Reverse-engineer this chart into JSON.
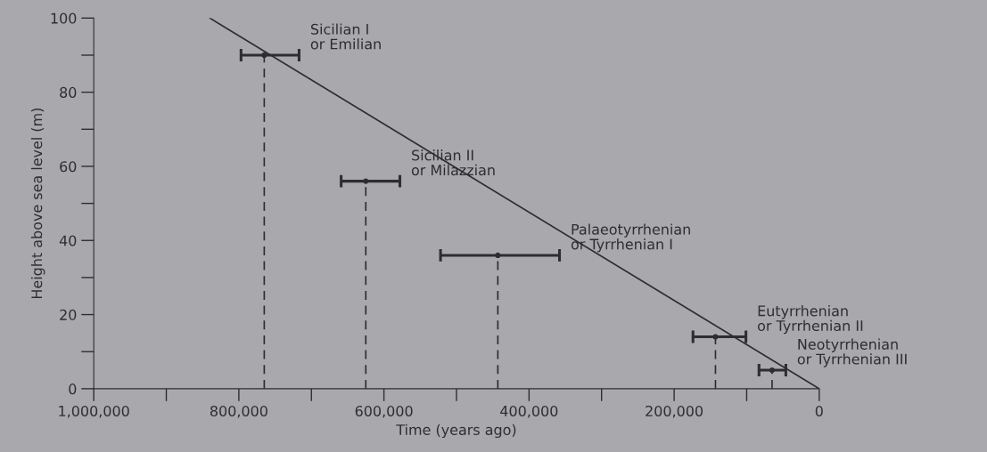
{
  "chart_data": {
    "type": "scatter",
    "xlabel": "Time (years ago)",
    "ylabel": "Height above sea level (m)",
    "xlim": [
      1000000,
      0
    ],
    "ylim": [
      0,
      100
    ],
    "xticks": [
      {
        "value": 1000000,
        "label": "1,000,000"
      },
      {
        "value": 900000,
        "label": null
      },
      {
        "value": 800000,
        "label": "800,000"
      },
      {
        "value": 700000,
        "label": null
      },
      {
        "value": 600000,
        "label": "600,000"
      },
      {
        "value": 500000,
        "label": null
      },
      {
        "value": 400000,
        "label": "400,000"
      },
      {
        "value": 300000,
        "label": null
      },
      {
        "value": 200000,
        "label": "200,000"
      },
      {
        "value": 100000,
        "label": null
      },
      0
    ],
    "yticks": [
      0,
      {
        "value": 10,
        "label": null
      },
      20,
      {
        "value": 30,
        "label": null
      },
      40,
      {
        "value": 50,
        "label": null
      },
      60,
      {
        "value": 70,
        "label": null
      },
      80,
      {
        "value": 90,
        "label": null
      },
      100
    ],
    "grid": false,
    "legend": false,
    "series": [
      {
        "color": "#2e2e30",
        "marker": "circle",
        "x": [
          765000,
          625000,
          443000,
          143000,
          65000
        ],
        "values": [
          90,
          56,
          36,
          14,
          5
        ],
        "xerrors": [
          [
            797000,
            717000
          ],
          [
            659000,
            578000
          ],
          [
            522000,
            358000
          ],
          [
            174000,
            101000
          ],
          [
            83000,
            46000
          ]
        ],
        "errors": [
          [
            0,
            90
          ],
          [
            0,
            56
          ],
          [
            0,
            36
          ],
          [
            0,
            14
          ],
          [
            0,
            5
          ]
        ]
      },
      {
        "type": "line",
        "color": "#2e2e30",
        "x": [
          840000,
          0
        ],
        "values": [
          100,
          0
        ],
        "line_style": "solid"
      }
    ],
    "annotations": [
      "Sicilian I\nor Emilian",
      "Sicilian II\nor Milazzian",
      "Palaeotyrrhenian\nor Tyrrhenian I",
      "Eutyrrhenian\nor Tyrrhenian II",
      "Neotyrrhenian\nor Tyrrhenian III"
    ]
  }
}
